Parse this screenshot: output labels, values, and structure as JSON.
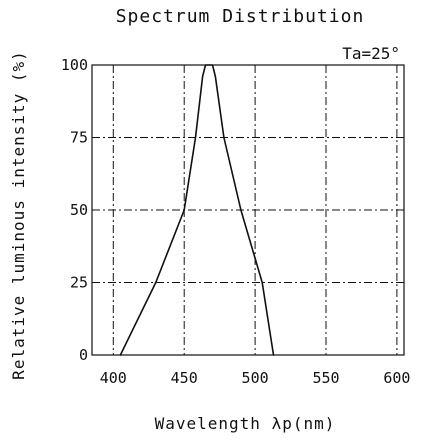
{
  "chart_data": {
    "type": "line",
    "title": "Spectrum Distribution",
    "xlabel": "Wavelength λp(nm)",
    "ylabel": "Relative luminous intensity (%)",
    "annotation": "Ta=25°",
    "xlim": [
      385,
      605
    ],
    "ylim": [
      0,
      100
    ],
    "x_ticks": [
      "400",
      "450",
      "500",
      "550",
      "600"
    ],
    "y_ticks": [
      "0",
      "25",
      "50",
      "75",
      "100"
    ],
    "grid": true,
    "series": [
      {
        "x": [
          405,
          430,
          450,
          458,
          463,
          465,
          470,
          472,
          478,
          490,
          505,
          513
        ],
        "y": [
          0,
          25,
          50,
          75,
          96,
          100,
          100,
          96,
          75,
          50,
          25,
          0
        ]
      }
    ]
  }
}
